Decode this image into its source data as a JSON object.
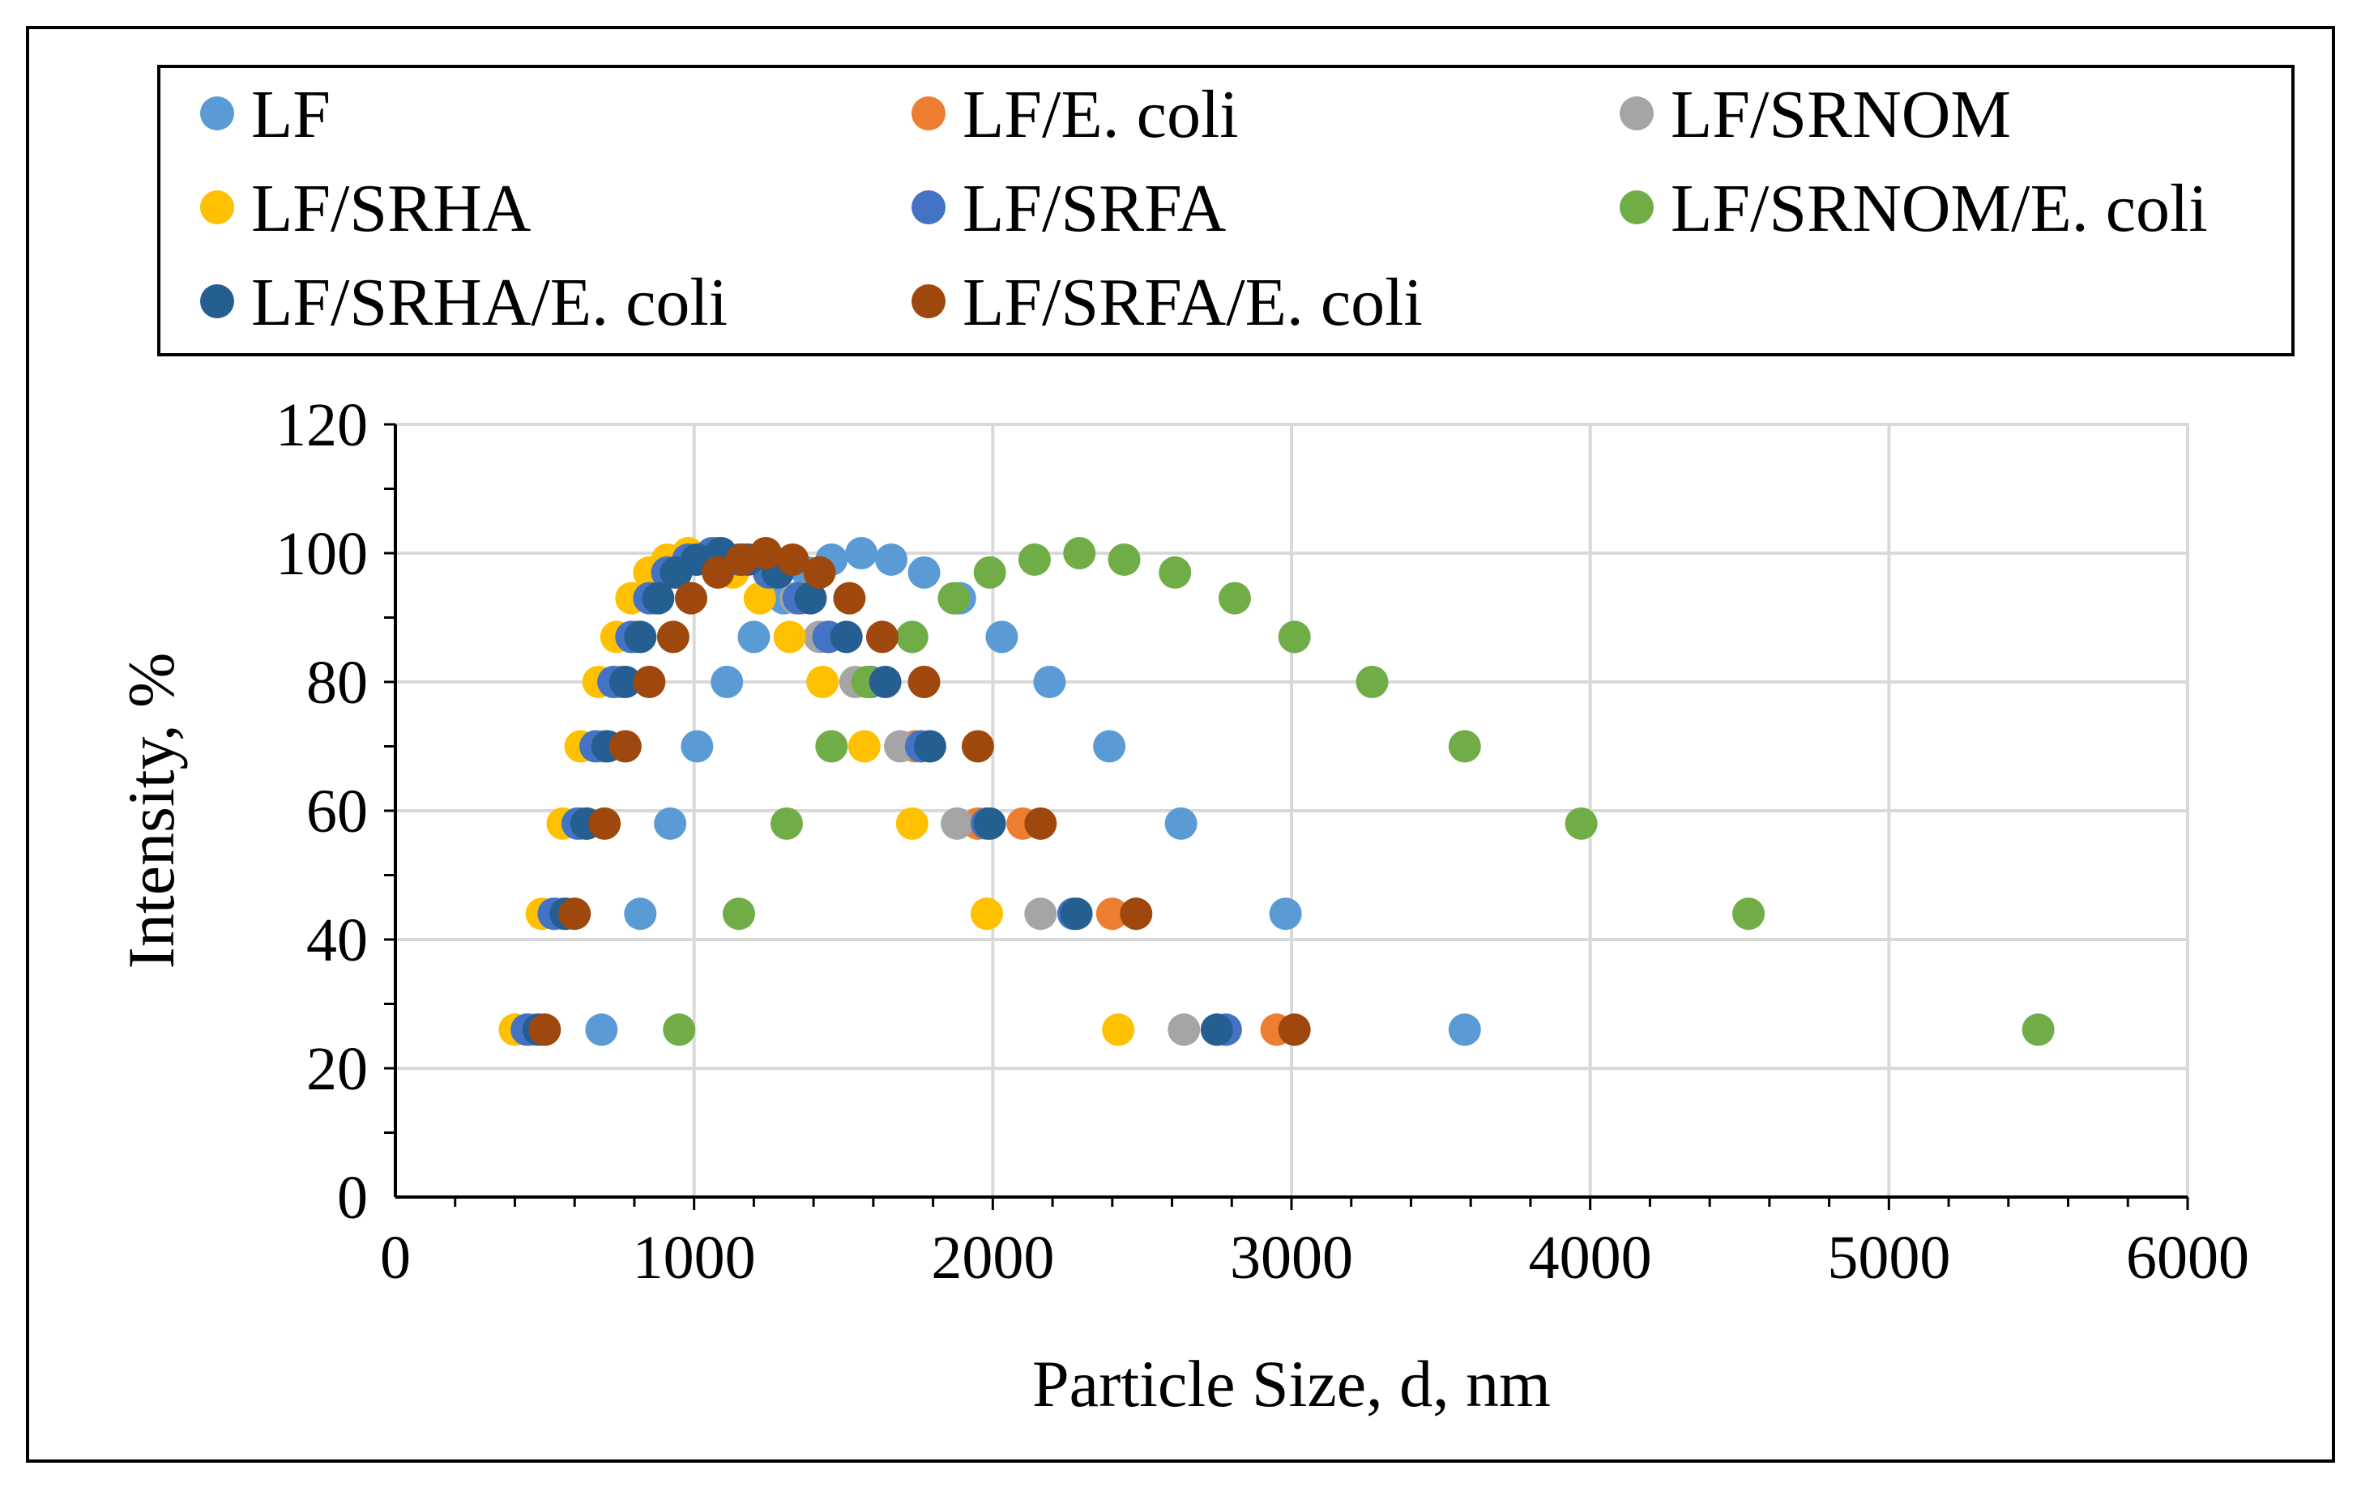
{
  "chart_data": {
    "type": "scatter",
    "title": "",
    "xlabel": "Particle Size, d, nm",
    "ylabel": "Intensity, %",
    "xlim": [
      0,
      6000
    ],
    "ylim": [
      0,
      120
    ],
    "xticks": [
      0,
      1000,
      2000,
      3000,
      4000,
      5000,
      6000
    ],
    "yticks": [
      0,
      20,
      40,
      60,
      80,
      100,
      120
    ],
    "x_tick_labels": [
      "0",
      "1000",
      "2000",
      "3000",
      "4000",
      "5000",
      "6000"
    ],
    "y_tick_labels": [
      "0",
      "20",
      "40",
      "60",
      "80",
      "100",
      "120"
    ],
    "grid": true,
    "legend_position": "top",
    "series": [
      {
        "name": "LF",
        "color": "#5B9BD5",
        "points": [
          [
            690,
            26
          ],
          [
            820,
            44
          ],
          [
            920,
            58
          ],
          [
            1010,
            70
          ],
          [
            1110,
            80
          ],
          [
            1200,
            87
          ],
          [
            1300,
            93
          ],
          [
            1380,
            97
          ],
          [
            1460,
            99
          ],
          [
            1560,
            100
          ],
          [
            1660,
            99
          ],
          [
            1770,
            97
          ],
          [
            1890,
            93
          ],
          [
            2030,
            87
          ],
          [
            2190,
            80
          ],
          [
            2390,
            70
          ],
          [
            2630,
            58
          ],
          [
            2980,
            44
          ],
          [
            3580,
            26
          ]
        ]
      },
      {
        "name": "LF/E. coli",
        "color": "#ED7D31",
        "points": [
          [
            460,
            26
          ],
          [
            560,
            44
          ],
          [
            640,
            58
          ],
          [
            700,
            70
          ],
          [
            760,
            80
          ],
          [
            810,
            87
          ],
          [
            870,
            93
          ],
          [
            930,
            97
          ],
          [
            1000,
            99
          ],
          [
            1080,
            100
          ],
          [
            1170,
            99
          ],
          [
            1260,
            97
          ],
          [
            1360,
            93
          ],
          [
            1450,
            87
          ],
          [
            1580,
            80
          ],
          [
            1740,
            70
          ],
          [
            1950,
            58
          ],
          [
            2100,
            58
          ],
          [
            2400,
            44
          ],
          [
            2950,
            26
          ]
        ]
      },
      {
        "name": "LF/SRNOM",
        "color": "#A5A5A5",
        "points": [
          [
            450,
            26
          ],
          [
            540,
            44
          ],
          [
            620,
            58
          ],
          [
            690,
            70
          ],
          [
            750,
            80
          ],
          [
            800,
            87
          ],
          [
            860,
            93
          ],
          [
            920,
            97
          ],
          [
            990,
            99
          ],
          [
            1070,
            100
          ],
          [
            1160,
            99
          ],
          [
            1250,
            97
          ],
          [
            1340,
            93
          ],
          [
            1420,
            87
          ],
          [
            1540,
            80
          ],
          [
            1690,
            70
          ],
          [
            1880,
            58
          ],
          [
            2160,
            44
          ],
          [
            2640,
            26
          ]
        ]
      },
      {
        "name": "LF/SRHA",
        "color": "#FFC000",
        "points": [
          [
            400,
            26
          ],
          [
            490,
            44
          ],
          [
            560,
            58
          ],
          [
            620,
            70
          ],
          [
            680,
            80
          ],
          [
            740,
            87
          ],
          [
            790,
            93
          ],
          [
            850,
            97
          ],
          [
            910,
            99
          ],
          [
            980,
            100
          ],
          [
            1060,
            99
          ],
          [
            1130,
            97
          ],
          [
            1220,
            93
          ],
          [
            1320,
            87
          ],
          [
            1430,
            80
          ],
          [
            1570,
            70
          ],
          [
            1730,
            58
          ],
          [
            1980,
            44
          ],
          [
            2420,
            26
          ]
        ]
      },
      {
        "name": "LF/SRFA",
        "color": "#4472C4",
        "points": [
          [
            440,
            26
          ],
          [
            530,
            44
          ],
          [
            610,
            58
          ],
          [
            670,
            70
          ],
          [
            730,
            80
          ],
          [
            790,
            87
          ],
          [
            850,
            93
          ],
          [
            910,
            97
          ],
          [
            980,
            99
          ],
          [
            1060,
            100
          ],
          [
            1150,
            99
          ],
          [
            1250,
            97
          ],
          [
            1350,
            93
          ],
          [
            1450,
            87
          ],
          [
            1590,
            80
          ],
          [
            1760,
            70
          ],
          [
            1980,
            58
          ],
          [
            2270,
            44
          ],
          [
            2780,
            26
          ]
        ]
      },
      {
        "name": "LF/SRNOM/E. coli",
        "color": "#70AD47",
        "points": [
          [
            950,
            26
          ],
          [
            1150,
            44
          ],
          [
            1310,
            58
          ],
          [
            1460,
            70
          ],
          [
            1580,
            80
          ],
          [
            1730,
            87
          ],
          [
            1870,
            93
          ],
          [
            1990,
            97
          ],
          [
            2140,
            99
          ],
          [
            2290,
            100
          ],
          [
            2440,
            99
          ],
          [
            2610,
            97
          ],
          [
            2810,
            93
          ],
          [
            3010,
            87
          ],
          [
            3270,
            80
          ],
          [
            3580,
            70
          ],
          [
            3970,
            58
          ],
          [
            4530,
            44
          ],
          [
            5500,
            26
          ]
        ]
      },
      {
        "name": "LF/SRHA/E. coli",
        "color": "#255E91",
        "points": [
          [
            480,
            26
          ],
          [
            570,
            44
          ],
          [
            640,
            58
          ],
          [
            710,
            70
          ],
          [
            770,
            80
          ],
          [
            820,
            87
          ],
          [
            880,
            93
          ],
          [
            940,
            97
          ],
          [
            1010,
            99
          ],
          [
            1090,
            100
          ],
          [
            1180,
            99
          ],
          [
            1280,
            97
          ],
          [
            1390,
            93
          ],
          [
            1510,
            87
          ],
          [
            1640,
            80
          ],
          [
            1790,
            70
          ],
          [
            1990,
            58
          ],
          [
            2280,
            44
          ],
          [
            2750,
            26
          ]
        ]
      },
      {
        "name": "LF/SRFA/E. coli",
        "color": "#9E480E",
        "points": [
          [
            500,
            26
          ],
          [
            600,
            44
          ],
          [
            700,
            58
          ],
          [
            770,
            70
          ],
          [
            850,
            80
          ],
          [
            930,
            87
          ],
          [
            990,
            93
          ],
          [
            1080,
            97
          ],
          [
            1160,
            99
          ],
          [
            1240,
            100
          ],
          [
            1330,
            99
          ],
          [
            1420,
            97
          ],
          [
            1520,
            93
          ],
          [
            1630,
            87
          ],
          [
            1770,
            80
          ],
          [
            1950,
            70
          ],
          [
            2160,
            58
          ],
          [
            2480,
            44
          ],
          [
            3010,
            26
          ]
        ]
      }
    ]
  }
}
